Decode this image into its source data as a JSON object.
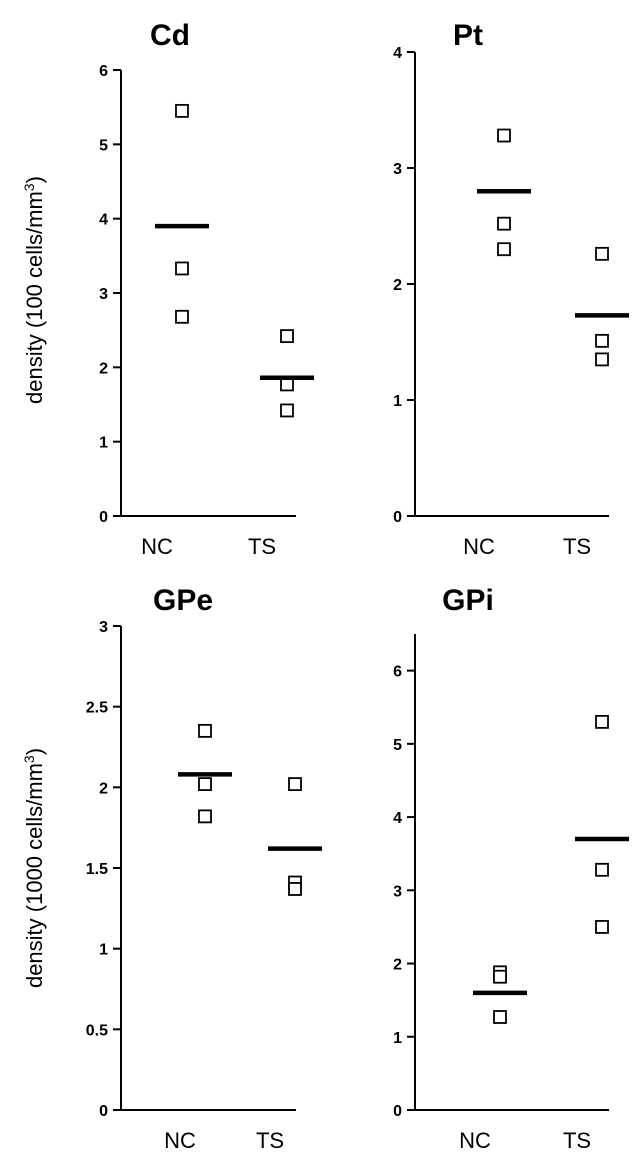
{
  "chart_data": [
    {
      "type": "scatter",
      "title": "Cd",
      "ylabel": "density (100 cells/mm",
      "ylabel_sup": "3",
      "ylabel_close": ")",
      "categories": [
        "NC",
        "TS"
      ],
      "ylim": [
        0,
        6
      ],
      "yticks": [
        0,
        1,
        2,
        3,
        4,
        5,
        6
      ],
      "ytick_labels": [
        "0",
        "1",
        "2",
        "3",
        "4",
        "5",
        "6"
      ],
      "points": [
        [
          5.45,
          3.33,
          2.68
        ],
        [
          2.42,
          1.77,
          1.42
        ]
      ],
      "means": [
        3.9,
        1.86
      ]
    },
    {
      "type": "scatter",
      "title": "Pt",
      "categories": [
        "NC",
        "TS"
      ],
      "ylim": [
        0,
        4
      ],
      "yticks": [
        0,
        1,
        2,
        3,
        4
      ],
      "ytick_labels": [
        "0",
        "1",
        "2",
        "3",
        "4"
      ],
      "points": [
        [
          3.28,
          2.52,
          2.3
        ],
        [
          2.26,
          1.51,
          1.35
        ]
      ],
      "means": [
        2.8,
        1.73
      ]
    },
    {
      "type": "scatter",
      "title": "GPe",
      "ylabel": "density (1000 cells/mm",
      "ylabel_sup": "3",
      "ylabel_close": ")",
      "categories": [
        "NC",
        "TS"
      ],
      "ylim": [
        0,
        3
      ],
      "yticks": [
        0,
        0.5,
        1,
        1.5,
        2,
        2.5,
        3
      ],
      "ytick_labels": [
        "0",
        "0.5",
        "1",
        "1.5",
        "2",
        "2.5",
        "3"
      ],
      "points": [
        [
          2.35,
          2.02,
          1.82
        ],
        [
          2.02,
          1.41,
          1.37
        ]
      ],
      "means": [
        2.08,
        1.62
      ]
    },
    {
      "type": "scatter",
      "title": "GPi",
      "categories": [
        "NC",
        "TS"
      ],
      "ylim": [
        0,
        6.5
      ],
      "yticks": [
        0,
        1,
        2,
        3,
        4,
        5,
        6
      ],
      "ytick_labels": [
        "0",
        "1",
        "2",
        "3",
        "4",
        "5",
        "6"
      ],
      "points": [
        [
          1.88,
          1.82,
          1.27
        ],
        [
          5.3,
          3.28,
          2.5
        ]
      ],
      "means": [
        1.6,
        3.7
      ]
    }
  ]
}
